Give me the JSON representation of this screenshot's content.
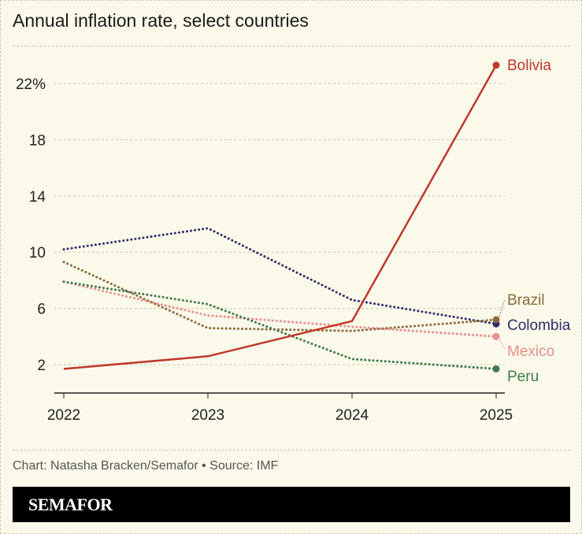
{
  "title": "Annual inflation rate, select countries",
  "credit": "Chart: Natasha Bracken/Semafor • Source: IMF",
  "logo": "SEMAFOR",
  "chart_data": {
    "type": "line",
    "title": "Annual inflation rate, select countries",
    "x": [
      "2022",
      "2023",
      "2024",
      "2025"
    ],
    "yticks": [
      2,
      6,
      10,
      14,
      18,
      22
    ],
    "ytick_labels": [
      "2",
      "6",
      "10",
      "14",
      "18",
      "22%"
    ],
    "ylim": [
      -0.5,
      25
    ],
    "grid": true,
    "series": [
      {
        "name": "Colombia",
        "color": "#2b2f6b",
        "style": "dotted",
        "values": [
          10.2,
          11.7,
          6.6,
          4.9
        ]
      },
      {
        "name": "Brazil",
        "color": "#8a6a3a",
        "style": "dotted",
        "values": [
          9.3,
          4.6,
          4.4,
          5.2
        ]
      },
      {
        "name": "Mexico",
        "color": "#e8908e",
        "style": "dotted",
        "values": [
          7.9,
          5.5,
          4.7,
          4.0
        ]
      },
      {
        "name": "Peru",
        "color": "#3f7a4f",
        "style": "dotted",
        "values": [
          7.9,
          6.3,
          2.4,
          1.7
        ]
      },
      {
        "name": "Bolivia",
        "color": "#c0392b",
        "style": "solid",
        "values": [
          1.7,
          2.6,
          5.1,
          23.3
        ]
      }
    ]
  }
}
